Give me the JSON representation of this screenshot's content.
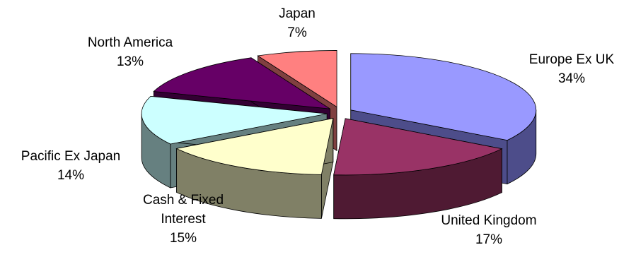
{
  "chart_data": {
    "type": "pie",
    "title": "",
    "three_d": true,
    "exploded": true,
    "legend": "none",
    "slices": [
      {
        "label": "Europe Ex UK",
        "label_lines": [
          "Europe Ex UK"
        ],
        "value": 34,
        "value_label": "34%",
        "top_color": "#9999ff",
        "side_color": "#4d4d8a"
      },
      {
        "label": "United Kingdom",
        "label_lines": [
          "United Kingdom"
        ],
        "value": 17,
        "value_label": "17%",
        "top_color": "#993366",
        "side_color": "#4f1a33"
      },
      {
        "label": "Cash & Fixed Interest",
        "label_lines": [
          "Cash & Fixed",
          "Interest"
        ],
        "value": 15,
        "value_label": "15%",
        "top_color": "#ffffcc",
        "side_color": "#808066"
      },
      {
        "label": "Pacific Ex Japan",
        "label_lines": [
          "Pacific Ex Japan"
        ],
        "value": 14,
        "value_label": "14%",
        "top_color": "#ccffff",
        "side_color": "#668080"
      },
      {
        "label": "North America",
        "label_lines": [
          "North America"
        ],
        "value": 13,
        "value_label": "13%",
        "top_color": "#660066",
        "side_color": "#330033"
      },
      {
        "label": "Japan",
        "label_lines": [
          "Japan"
        ],
        "value": 7,
        "value_label": "7%",
        "top_color": "#ff8080",
        "side_color": "#804040"
      }
    ]
  }
}
